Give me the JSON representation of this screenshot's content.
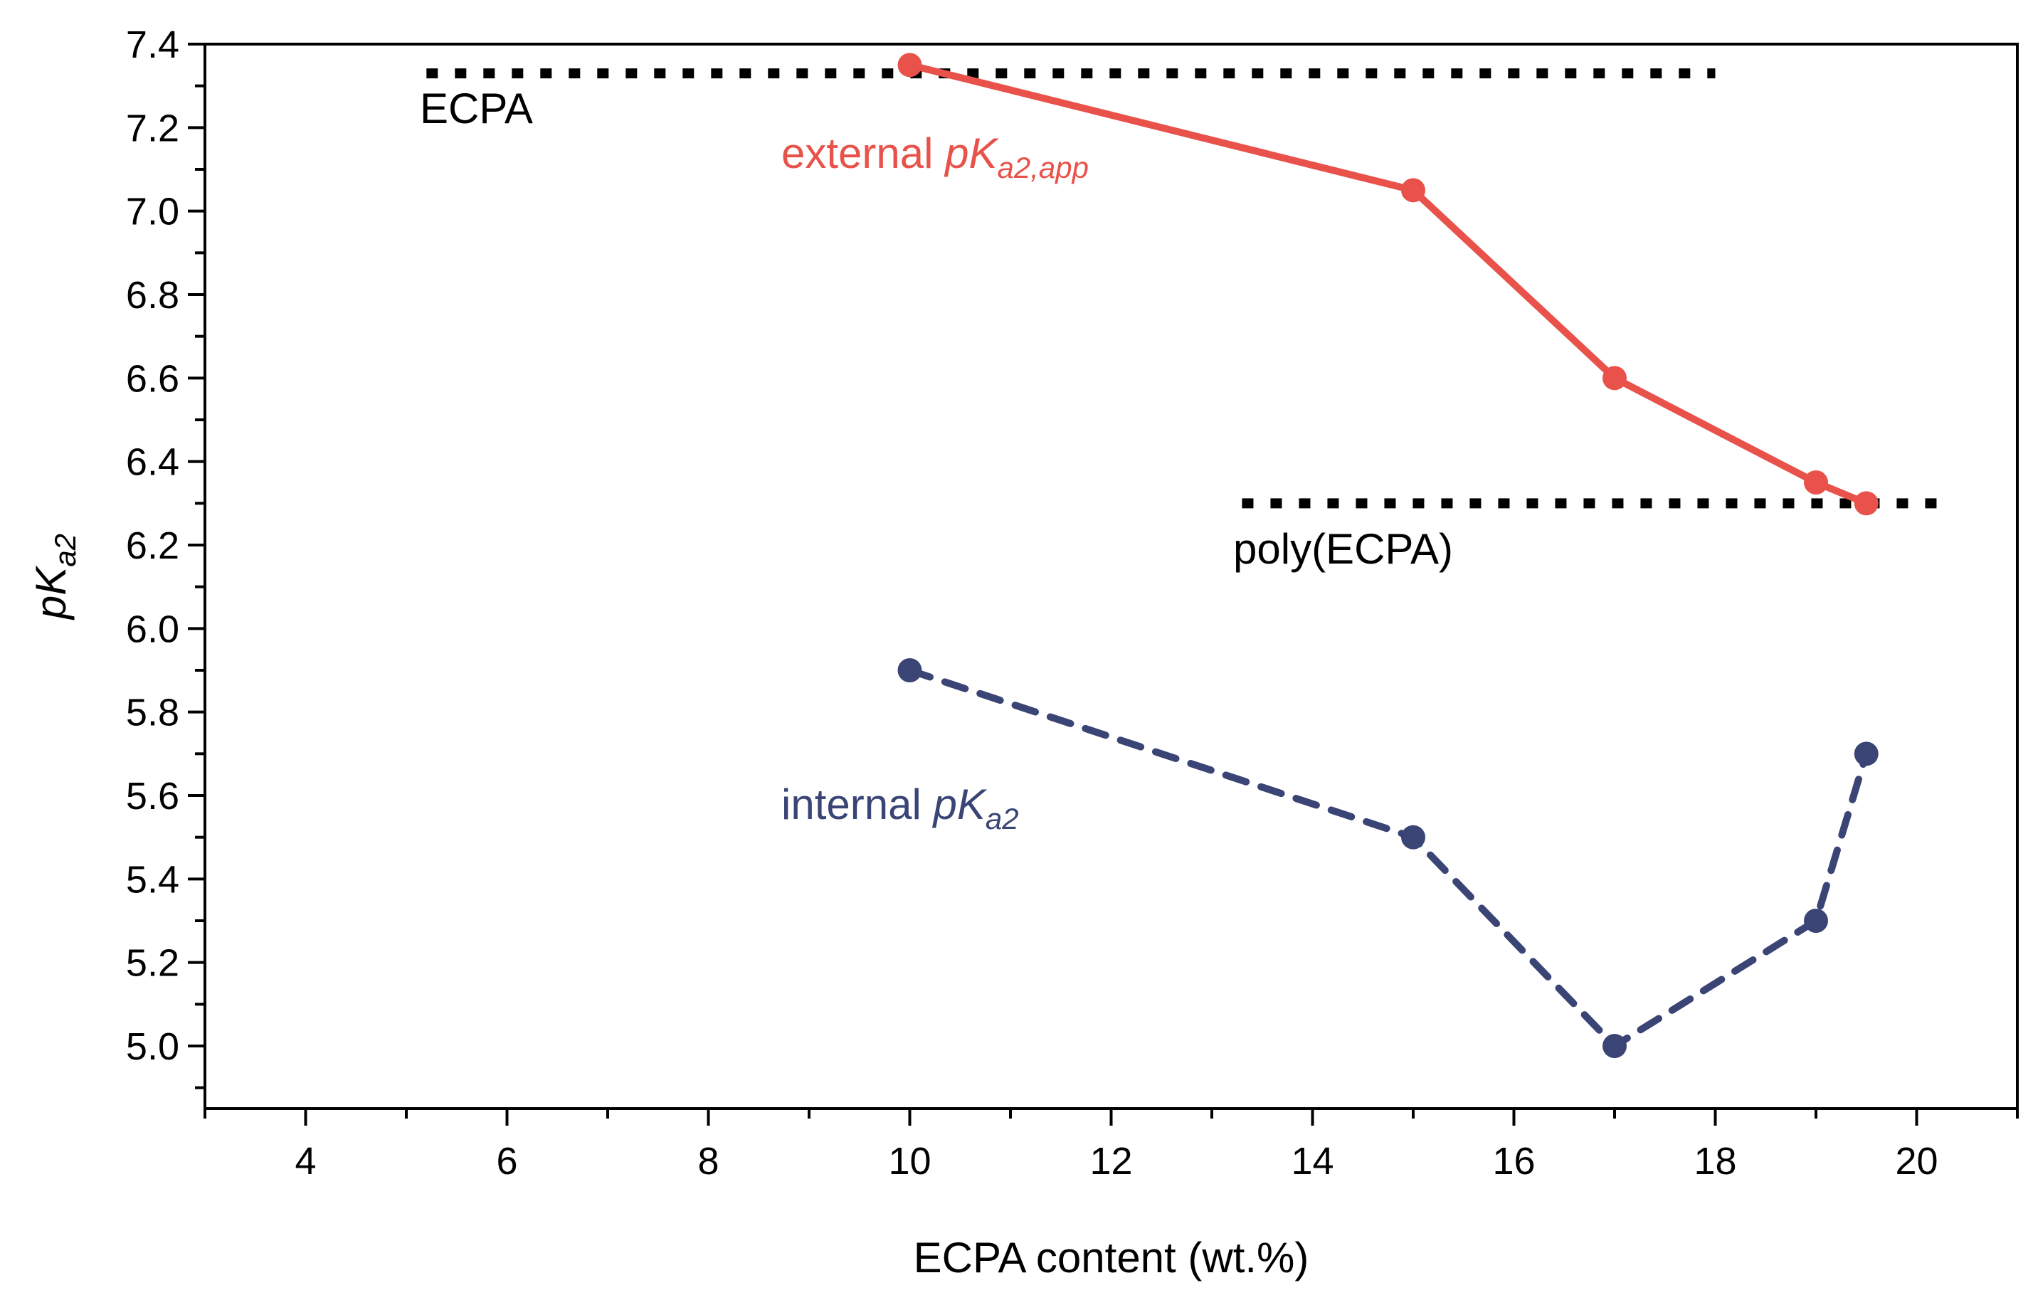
{
  "chart_data": {
    "type": "line",
    "title": "",
    "xlabel": "ECPA content (wt.%)",
    "ylabel": {
      "main": "pK",
      "sub": "a2"
    },
    "xlim": [
      3,
      21
    ],
    "ylim": [
      4.85,
      7.4
    ],
    "xticks": [
      4,
      6,
      8,
      10,
      12,
      14,
      16,
      18,
      20
    ],
    "yticks": [
      5.0,
      5.2,
      5.4,
      5.6,
      5.8,
      6.0,
      6.2,
      6.4,
      6.6,
      6.8,
      7.0,
      7.2,
      7.4
    ],
    "xtick_labels": [
      "4",
      "6",
      "8",
      "10",
      "12",
      "14",
      "16",
      "18",
      "20"
    ],
    "ytick_labels": [
      "5.0",
      "5.2",
      "5.4",
      "5.6",
      "5.8",
      "6.0",
      "6.2",
      "6.4",
      "6.6",
      "6.8",
      "7.0",
      "7.2",
      "7.4"
    ],
    "grid": false,
    "series": [
      {
        "name": "external pKa2,app",
        "color": "#e8524a",
        "line_style": "solid",
        "x": [
          10,
          15,
          17,
          19,
          19.5
        ],
        "y": [
          7.35,
          7.05,
          6.6,
          6.35,
          6.3
        ]
      },
      {
        "name": "internal pKa2",
        "color": "#3a4475",
        "line_style": "dashed",
        "x": [
          10,
          15,
          17,
          19,
          19.5
        ],
        "y": [
          5.9,
          5.5,
          5.0,
          5.3,
          5.7
        ]
      }
    ],
    "reference_lines": [
      {
        "name": "ECPA",
        "y": 7.33,
        "x_range": [
          5.2,
          18
        ],
        "color": "#000000",
        "line_style": "dotted"
      },
      {
        "name": "poly(ECPA)",
        "y": 6.3,
        "x_range": [
          13.3,
          20.3
        ],
        "color": "#000000",
        "line_style": "dotted"
      }
    ],
    "annotations": [
      {
        "name": "ecpa-label",
        "parts": [
          {
            "text": "ECPA"
          }
        ],
        "color": "#000000"
      },
      {
        "name": "poly-ecpa-label",
        "parts": [
          {
            "text": "poly(ECPA)"
          }
        ],
        "color": "#000000"
      },
      {
        "name": "external-label",
        "parts": [
          {
            "text": "external "
          },
          {
            "text": "pK",
            "italic": true
          },
          {
            "text": "a2,app",
            "italic": true,
            "sub": true
          }
        ],
        "color": "#e8524a"
      },
      {
        "name": "internal-label",
        "parts": [
          {
            "text": "internal "
          },
          {
            "text": "pK",
            "italic": true
          },
          {
            "text": "a2",
            "italic": true,
            "sub": true
          }
        ],
        "color": "#3a4475"
      }
    ]
  }
}
